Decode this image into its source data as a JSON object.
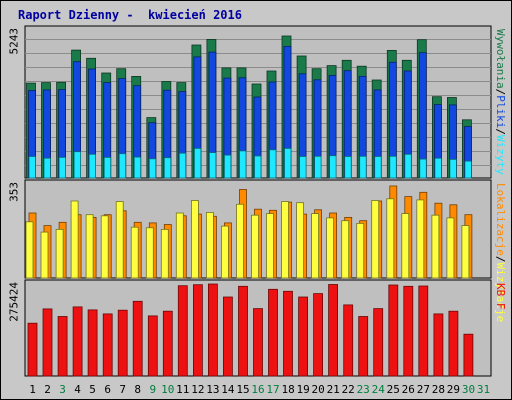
{
  "chart_data": {
    "type": "bar",
    "title": "Raport Dzienny -  kwiecień 2016",
    "categories": [
      "1",
      "2",
      "3",
      "4",
      "5",
      "6",
      "7",
      "8",
      "9",
      "10",
      "11",
      "12",
      "13",
      "14",
      "15",
      "16",
      "17",
      "18",
      "19",
      "20",
      "21",
      "22",
      "23",
      "24",
      "25",
      "26",
      "27",
      "28",
      "29",
      "30",
      "31"
    ],
    "weekend_days": [
      "3",
      "9",
      "10",
      "16",
      "17",
      "23",
      "24",
      "30",
      "31"
    ],
    "colors": {
      "title": "#0000a0",
      "panel_bg": "#bfbfbf",
      "frame_bg": "#c8c8c8",
      "gridline": "#8c8c8c",
      "wizyty": "#1a7a4a",
      "pliki": "#1248e0",
      "wywolania": "#1ee8ff",
      "lokalizacje": "#ff8a00",
      "wizytacje": "#ffff40",
      "kbf": "#ee1111",
      "day_normal": "#000000",
      "day_weekend": "#007f3f"
    },
    "panels": [
      {
        "id": "top",
        "ymax_label": "5243",
        "legend": [
          {
            "text": "Wywołania",
            "color": "#1a7a4a"
          },
          {
            "text": "/",
            "color": "#000000"
          },
          {
            "text": "Pliki",
            "color": "#1248e0"
          },
          {
            "text": "/",
            "color": "#000000"
          },
          {
            "text": "Wizyty",
            "color": "#1ee8ff"
          }
        ],
        "series": [
          {
            "name": "Wywołania",
            "values": [
              3360,
              3380,
              3390,
              4530,
              4240,
              3720,
              3870,
              3600,
              2140,
              3420,
              3380,
              4710,
              4910,
              3900,
              3900,
              3330,
              3790,
              5030,
              4320,
              3870,
              3980,
              4170,
              3960,
              3470,
              4520,
              4170,
              4900,
              2880,
              2850,
              2060,
              null
            ]
          },
          {
            "name": "Pliki",
            "values": [
              3100,
              3120,
              3130,
              4120,
              3860,
              3380,
              3520,
              3270,
              1960,
              3110,
              3060,
              4290,
              4460,
              3540,
              3550,
              2870,
              3400,
              4660,
              3690,
              3480,
              3630,
              3800,
              3600,
              3120,
              4100,
              3790,
              4440,
              2600,
              2590,
              1820,
              null
            ]
          },
          {
            "name": "Wizyty",
            "values": [
              760,
              700,
              730,
              930,
              840,
              730,
              860,
              740,
              680,
              720,
              880,
              1050,
              900,
              810,
              960,
              780,
              1000,
              1050,
              760,
              770,
              790,
              760,
              770,
              760,
              770,
              840,
              670,
              700,
              660,
              600,
              null
            ]
          }
        ]
      },
      {
        "id": "middle",
        "ymax_label": "353",
        "legend": [
          {
            "text": "Lokalizacje",
            "color": "#ff8a00"
          },
          {
            "text": "/",
            "color": "#000000"
          },
          {
            "text": "Wizytacje",
            "color": "#ffff40"
          }
        ],
        "series": [
          {
            "name": "Lokalizacje",
            "values": [
              238,
              192,
              204,
              232,
              222,
              232,
              246,
              204,
              202,
              196,
              228,
              234,
              226,
              202,
              324,
              252,
              248,
              278,
              234,
              250,
              238,
              222,
              210,
              282,
              337,
              298,
              314,
              274,
              268,
              232,
              null
            ]
          },
          {
            "name": "Wizytacje",
            "values": [
              206,
              168,
              178,
              282,
              232,
              228,
              280,
              186,
              184,
              178,
              238,
              284,
              240,
              190,
              270,
              230,
              236,
              280,
              276,
              236,
              220,
              210,
              200,
              284,
              290,
              236,
              286,
              230,
              220,
              192,
              null
            ]
          }
        ]
      },
      {
        "id": "bottom",
        "ymax_label": "275424",
        "legend": [
          {
            "text": "KB F",
            "color": "#ee1111"
          }
        ],
        "series": [
          {
            "name": "KB F",
            "values": [
              159000,
              202000,
              179000,
              208000,
              199000,
              187000,
              198000,
              225000,
              181000,
              195000,
              272000,
              275000,
              277000,
              238000,
              270000,
              203000,
              261000,
              255000,
              238000,
              248000,
              275424,
              214000,
              179000,
              203000,
              274000,
              270000,
              271000,
              187000,
              195000,
              126000,
              null
            ]
          }
        ]
      }
    ]
  }
}
